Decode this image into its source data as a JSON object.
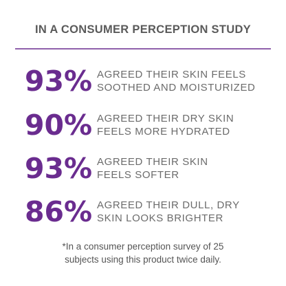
{
  "header": {
    "title": "IN A CONSUMER PERCEPTION STUDY"
  },
  "stats": [
    {
      "value": "93%",
      "lines": [
        "AGREED THEIR SKIN FEELS",
        "SOOTHED AND MOISTURIZED"
      ]
    },
    {
      "value": "90%",
      "lines": [
        "AGREED THEIR DRY SKIN",
        "FEELS MORE HYDRATED"
      ]
    },
    {
      "value": "93%",
      "lines": [
        "AGREED THEIR SKIN",
        "FEELS SOFTER"
      ]
    },
    {
      "value": "86%",
      "lines": [
        "AGREED THEIR DULL, DRY",
        "SKIN LOOKS BRIGHTER"
      ]
    }
  ],
  "footnote": {
    "lines": [
      "*In a consumer perception survey of 25",
      "subjects using this product twice daily."
    ]
  }
}
